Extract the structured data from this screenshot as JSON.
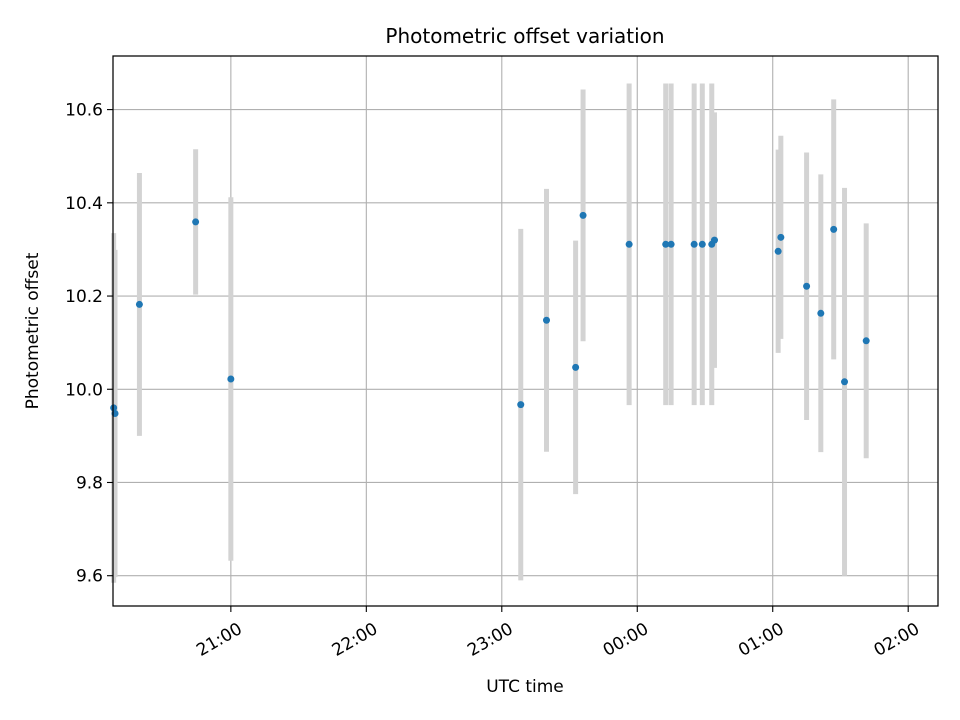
{
  "chart_data": {
    "type": "scatter",
    "title": "Photometric offset variation",
    "xlabel": "UTC time",
    "ylabel": "Photometric offset",
    "x_unit": "hours UTC (values past midnight continue above 24)",
    "xlim": [
      20.13,
      26.22
    ],
    "ylim": [
      9.535,
      10.715
    ],
    "grid": true,
    "x_ticks": [
      {
        "value": 21,
        "label": "21:00"
      },
      {
        "value": 22,
        "label": "22:00"
      },
      {
        "value": 23,
        "label": "23:00"
      },
      {
        "value": 24,
        "label": "00:00"
      },
      {
        "value": 25,
        "label": "01:00"
      },
      {
        "value": 26,
        "label": "02:00"
      }
    ],
    "y_ticks": [
      {
        "value": 9.6,
        "label": "9.6"
      },
      {
        "value": 9.8,
        "label": "9.8"
      },
      {
        "value": 10.0,
        "label": "10.0"
      },
      {
        "value": 10.2,
        "label": "10.2"
      },
      {
        "value": 10.4,
        "label": "10.4"
      },
      {
        "value": 10.6,
        "label": "10.6"
      }
    ],
    "colors": {
      "points": "#1f77b4",
      "errorbars": "#d3d3d3",
      "grid": "#b0b0b0"
    },
    "points": [
      {
        "x": 20.135,
        "y": 9.96,
        "ylow": 9.585,
        "yhigh": 10.335
      },
      {
        "x": 20.145,
        "y": 9.948,
        "ylow": 9.597,
        "yhigh": 10.299
      },
      {
        "x": 20.325,
        "y": 10.182,
        "ylow": 9.9,
        "yhigh": 10.464
      },
      {
        "x": 20.74,
        "y": 10.359,
        "ylow": 10.203,
        "yhigh": 10.515
      },
      {
        "x": 21.0,
        "y": 10.022,
        "ylow": 9.632,
        "yhigh": 10.412
      },
      {
        "x": 23.14,
        "y": 9.967,
        "ylow": 9.59,
        "yhigh": 10.344
      },
      {
        "x": 23.33,
        "y": 10.148,
        "ylow": 9.866,
        "yhigh": 10.43
      },
      {
        "x": 23.545,
        "y": 10.047,
        "ylow": 9.775,
        "yhigh": 10.319
      },
      {
        "x": 23.6,
        "y": 10.373,
        "ylow": 10.103,
        "yhigh": 10.643
      },
      {
        "x": 23.94,
        "y": 10.311,
        "ylow": 9.966,
        "yhigh": 10.656
      },
      {
        "x": 24.21,
        "y": 10.311,
        "ylow": 9.966,
        "yhigh": 10.656
      },
      {
        "x": 24.25,
        "y": 10.311,
        "ylow": 9.966,
        "yhigh": 10.656
      },
      {
        "x": 24.42,
        "y": 10.311,
        "ylow": 9.966,
        "yhigh": 10.656
      },
      {
        "x": 24.48,
        "y": 10.311,
        "ylow": 9.966,
        "yhigh": 10.656
      },
      {
        "x": 24.55,
        "y": 10.311,
        "ylow": 9.966,
        "yhigh": 10.656
      },
      {
        "x": 24.57,
        "y": 10.32,
        "ylow": 10.046,
        "yhigh": 10.594
      },
      {
        "x": 25.04,
        "y": 10.296,
        "ylow": 10.078,
        "yhigh": 10.514
      },
      {
        "x": 25.06,
        "y": 10.326,
        "ylow": 10.108,
        "yhigh": 10.544
      },
      {
        "x": 25.25,
        "y": 10.221,
        "ylow": 9.934,
        "yhigh": 10.508
      },
      {
        "x": 25.355,
        "y": 10.163,
        "ylow": 9.865,
        "yhigh": 10.461
      },
      {
        "x": 25.45,
        "y": 10.343,
        "ylow": 10.064,
        "yhigh": 10.622
      },
      {
        "x": 25.53,
        "y": 10.016,
        "ylow": 9.6,
        "yhigh": 10.432
      },
      {
        "x": 25.69,
        "y": 10.104,
        "ylow": 9.852,
        "yhigh": 10.356
      }
    ]
  }
}
